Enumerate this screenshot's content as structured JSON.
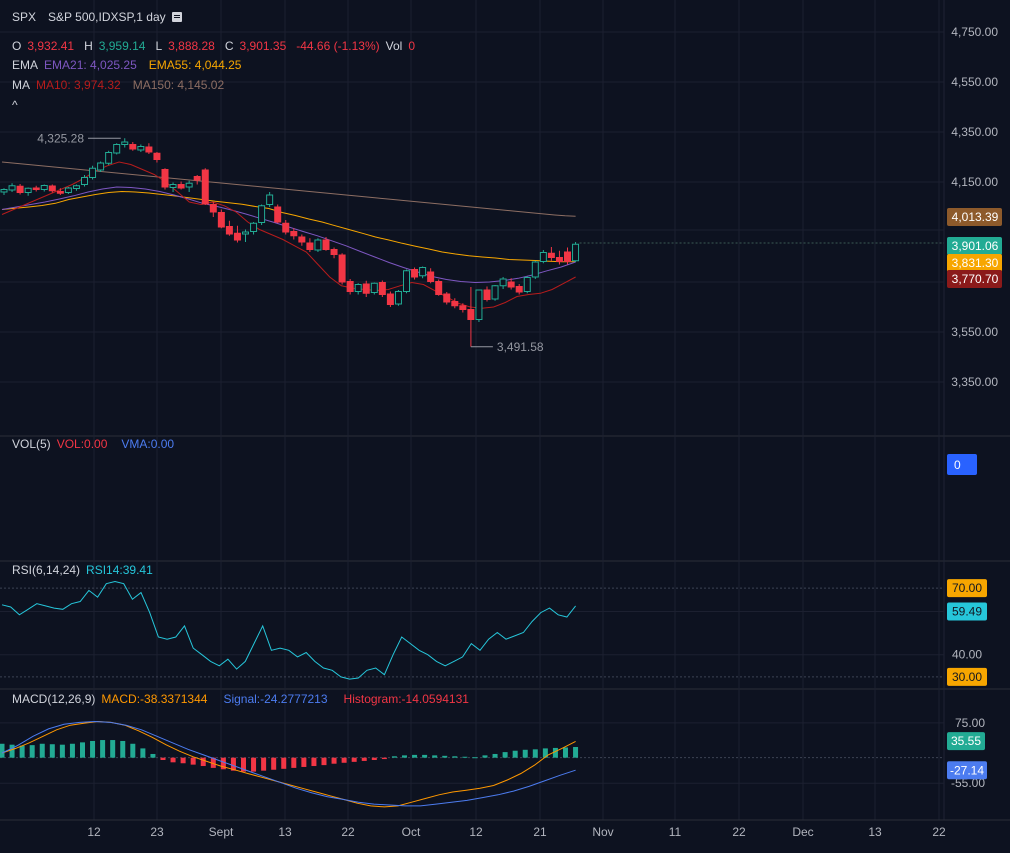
{
  "header": {
    "symbol": "SPX",
    "description": "S&P 500,IDXSP,1 day",
    "ohlc": {
      "o_label": "O",
      "o_value": "3,932.41",
      "h_label": "H",
      "h_value": "3,959.14",
      "l_label": "L",
      "l_value": "3,888.28",
      "c_label": "C",
      "c_value": "3,901.35",
      "change": "-44.66 (-1.13%)",
      "vol_label": "Vol",
      "vol_value": "0"
    },
    "ema": {
      "label": "EMA",
      "ema21": "EMA21: 4,025.25",
      "ema55": "EMA55: 4,044.25"
    },
    "ma": {
      "label": "MA",
      "ma10": "MA10: 3,974.32",
      "ma150": "MA150: 4,145.02"
    },
    "collapse": "^"
  },
  "volume_panel": {
    "title": "VOL(5)",
    "vol": "VOL:0.00",
    "vma": "VMA:0.00",
    "badge": "0"
  },
  "rsi_panel": {
    "title": "RSI(6,14,24)",
    "rsi14": "RSI14:39.41"
  },
  "macd_panel": {
    "title": "MACD(12,26,9)",
    "macd": "MACD:-38.3371344",
    "signal": "Signal:-24.2777213",
    "histogram": "Histogram:-14.0594131"
  },
  "colors": {
    "background": "#0d1220",
    "grid": "#1c2030",
    "up": "#22ab94",
    "down": "#f23645",
    "ema21": "#7e57c2",
    "ema55": "#f7a600",
    "ma10": "#b71c1c",
    "ma150": "#8d6e63",
    "rsi": "#26c6da",
    "macd": "#ff9800",
    "signal": "#4c7cf0"
  },
  "chart_data": [
    {
      "type": "candlestick",
      "title": "SPX",
      "y_ticks": [
        "4,750.00",
        "4,550.00",
        "4,350.00",
        "4,150.00",
        "3,550.00",
        "3,350.00"
      ],
      "x_ticks": [
        "12",
        "23",
        "Sept",
        "13",
        "22",
        "Oct",
        "12",
        "21",
        "Nov",
        "11",
        "22",
        "Dec",
        "13",
        "22"
      ],
      "annotations": {
        "high": "4,325.28",
        "low": "3,491.58"
      },
      "price_badges": [
        {
          "value": "4,013.39",
          "color": "#8d5a2b"
        },
        {
          "value": "3,901.06",
          "color": "#22ab94"
        },
        {
          "value": "3,831.30",
          "color": "#f7a600"
        },
        {
          "value": "3,770.70",
          "color": "#8b1a1a"
        }
      ],
      "candles": [
        [
          4110,
          4125,
          4098,
          4120
        ],
        [
          4118,
          4145,
          4110,
          4135
        ],
        [
          4133,
          4142,
          4100,
          4108
        ],
        [
          4108,
          4128,
          4095,
          4125
        ],
        [
          4126,
          4135,
          4112,
          4120
        ],
        [
          4120,
          4140,
          4112,
          4136
        ],
        [
          4134,
          4140,
          4108,
          4115
        ],
        [
          4112,
          4125,
          4098,
          4105
        ],
        [
          4108,
          4130,
          4102,
          4126
        ],
        [
          4124,
          4140,
          4115,
          4135
        ],
        [
          4140,
          4178,
          4132,
          4168
        ],
        [
          4168,
          4215,
          4160,
          4205
        ],
        [
          4198,
          4232,
          4190,
          4226
        ],
        [
          4225,
          4275,
          4218,
          4268
        ],
        [
          4266,
          4305,
          4260,
          4300
        ],
        [
          4300,
          4325,
          4288,
          4310
        ],
        [
          4300,
          4310,
          4275,
          4282
        ],
        [
          4278,
          4300,
          4270,
          4292
        ],
        [
          4290,
          4305,
          4262,
          4270
        ],
        [
          4265,
          4270,
          4228,
          4240
        ],
        [
          4200,
          4205,
          4120,
          4130
        ],
        [
          4128,
          4148,
          4110,
          4140
        ],
        [
          4140,
          4152,
          4120,
          4126
        ],
        [
          4130,
          4155,
          4110,
          4145
        ],
        [
          4172,
          4178,
          4140,
          4158
        ],
        [
          4198,
          4205,
          4058,
          4062
        ],
        [
          4060,
          4070,
          4010,
          4030
        ],
        [
          4028,
          4040,
          3965,
          3970
        ],
        [
          3972,
          3995,
          3935,
          3942
        ],
        [
          3945,
          3975,
          3908,
          3918
        ],
        [
          3942,
          3960,
          3910,
          3950
        ],
        [
          3952,
          3990,
          3940,
          3985
        ],
        [
          3988,
          4060,
          3978,
          4055
        ],
        [
          4060,
          4110,
          4050,
          4098
        ],
        [
          4050,
          4060,
          3985,
          3990
        ],
        [
          3985,
          3998,
          3940,
          3950
        ],
        [
          3952,
          3965,
          3920,
          3935
        ],
        [
          3930,
          3940,
          3895,
          3910
        ],
        [
          3906,
          3925,
          3870,
          3880
        ],
        [
          3878,
          3925,
          3870,
          3918
        ],
        [
          3918,
          3930,
          3875,
          3880
        ],
        [
          3880,
          3888,
          3845,
          3860
        ],
        [
          3858,
          3865,
          3740,
          3750
        ],
        [
          3752,
          3762,
          3700,
          3712
        ],
        [
          3712,
          3745,
          3700,
          3740
        ],
        [
          3742,
          3755,
          3690,
          3705
        ],
        [
          3708,
          3748,
          3700,
          3745
        ],
        [
          3748,
          3756,
          3690,
          3700
        ],
        [
          3702,
          3712,
          3650,
          3660
        ],
        [
          3662,
          3718,
          3655,
          3712
        ],
        [
          3712,
          3800,
          3705,
          3795
        ],
        [
          3800,
          3808,
          3760,
          3770
        ],
        [
          3775,
          3812,
          3765,
          3808
        ],
        [
          3790,
          3805,
          3745,
          3752
        ],
        [
          3752,
          3760,
          3695,
          3700
        ],
        [
          3702,
          3710,
          3660,
          3670
        ],
        [
          3672,
          3685,
          3645,
          3655
        ],
        [
          3655,
          3665,
          3628,
          3640
        ],
        [
          3640,
          3730,
          3491,
          3600
        ],
        [
          3600,
          3720,
          3590,
          3718
        ],
        [
          3718,
          3732,
          3672,
          3680
        ],
        [
          3682,
          3738,
          3675,
          3735
        ],
        [
          3735,
          3770,
          3722,
          3762
        ],
        [
          3750,
          3765,
          3720,
          3730
        ],
        [
          3732,
          3742,
          3700,
          3710
        ],
        [
          3712,
          3772,
          3705,
          3768
        ],
        [
          3770,
          3835,
          3762,
          3830
        ],
        [
          3832,
          3878,
          3825,
          3868
        ],
        [
          3865,
          3890,
          3835,
          3848
        ],
        [
          3848,
          3875,
          3820,
          3832
        ],
        [
          3870,
          3888,
          3820,
          3832
        ],
        [
          3835,
          3910,
          3830,
          3901
        ]
      ],
      "ema21_series": [
        4040,
        4050,
        4060,
        4070,
        4082,
        4095,
        4110,
        4122,
        4130,
        4128,
        4122,
        4112,
        4098,
        4082,
        4065,
        4052,
        4038,
        4022,
        4005,
        3988,
        3970,
        3952,
        3935,
        3915,
        3895,
        3872,
        3850,
        3828,
        3808,
        3790,
        3772,
        3760,
        3752,
        3748,
        3750,
        3756,
        3765,
        3778,
        3795,
        3810,
        3830
      ],
      "ema55_series": [
        4040,
        4045,
        4050,
        4056,
        4065,
        4080,
        4090,
        4100,
        4108,
        4112,
        4110,
        4106,
        4100,
        4094,
        4087,
        4080,
        4073,
        4067,
        4061,
        4052,
        4044,
        4028,
        4016,
        4002,
        3990,
        3975,
        3960,
        3945,
        3930,
        3918,
        3905,
        3893,
        3882,
        3870,
        3862,
        3855,
        3850,
        3846,
        3840,
        3838,
        3836,
        3833,
        3831,
        3831
      ],
      "ma10_series": [
        4020,
        4040,
        4060,
        4080,
        4100,
        4120,
        4140,
        4165,
        4195,
        4215,
        4230,
        4220,
        4200,
        4180,
        4150,
        4110,
        4070,
        4060,
        4070,
        4055,
        4030,
        3990,
        3960,
        3940,
        3920,
        3895,
        3870,
        3820,
        3770,
        3735,
        3725,
        3720,
        3716,
        3720,
        3735,
        3748,
        3740,
        3715,
        3690,
        3665,
        3650,
        3645,
        3650,
        3668,
        3692,
        3700,
        3705,
        3720,
        3745,
        3770
      ],
      "ma150_series": [
        4230,
        4226,
        4222,
        4218,
        4214,
        4210,
        4206,
        4202,
        4198,
        4194,
        4190,
        4186,
        4182,
        4178,
        4174,
        4170,
        4166,
        4162,
        4158,
        4154,
        4150,
        4146,
        4142,
        4138,
        4134,
        4130,
        4126,
        4122,
        4118,
        4114,
        4110,
        4106,
        4102,
        4098,
        4094,
        4090,
        4086,
        4082,
        4078,
        4074,
        4070,
        4066,
        4062,
        4058,
        4054,
        4050,
        4046,
        4042,
        4038,
        4034,
        4030,
        4026,
        4022,
        4018,
        4015,
        4013
      ]
    },
    {
      "type": "line",
      "title": "RSI(6,14,24)",
      "y_ticks": [
        "70.00",
        "59.49",
        "40.00",
        "30.00"
      ],
      "values": [
        62.5,
        61.5,
        58,
        60.5,
        63,
        62,
        61,
        60.5,
        63,
        64,
        69,
        66,
        72,
        73,
        72,
        65,
        68,
        59,
        48,
        47,
        48,
        53,
        43,
        40,
        37,
        35,
        38,
        33.5,
        37,
        45,
        53,
        42,
        43,
        42,
        39,
        41,
        37,
        34,
        33,
        30,
        29,
        29.5,
        33,
        34,
        31,
        40,
        48,
        45,
        42,
        40,
        37,
        35,
        37,
        39,
        45,
        42,
        47,
        50,
        47,
        48.5,
        50,
        55,
        59,
        61,
        58,
        57,
        62
      ],
      "ylim": [
        25,
        80
      ]
    },
    {
      "type": "line+bar",
      "title": "MACD(12,26,9)",
      "y_ticks": [
        "75.00",
        "35.55",
        "-27.14",
        "-55.00"
      ],
      "histogram": [
        30,
        28,
        26,
        27,
        30,
        29,
        28,
        30,
        33,
        36,
        38,
        38,
        36,
        30,
        20,
        8,
        -5,
        -10,
        -12,
        -15,
        -18,
        -22,
        -25,
        -28,
        -30,
        -30,
        -28,
        -26,
        -24,
        -22,
        -20,
        -18,
        -16,
        -13,
        -11,
        -9,
        -7,
        -5,
        -3,
        3,
        5,
        6,
        6,
        5,
        4,
        3,
        2,
        1,
        5,
        8,
        12,
        15,
        17,
        18,
        20,
        21,
        22,
        23
      ],
      "macd_series": [
        10,
        20,
        32,
        46,
        60,
        70,
        74,
        78,
        76,
        70,
        58,
        44,
        28,
        14,
        2,
        -8,
        -18,
        -26,
        -34,
        -42,
        -50,
        -58,
        -66,
        -74,
        -82,
        -90,
        -98,
        -104,
        -106,
        -104,
        -96,
        -88,
        -80,
        -74,
        -70,
        -66,
        -60,
        -48,
        -34,
        -16,
        6,
        20,
        35
      ],
      "signal_series": [
        10,
        26,
        46,
        62,
        72,
        76,
        78,
        76,
        70,
        60,
        46,
        32,
        18,
        6,
        -6,
        -18,
        -30,
        -42,
        -54,
        -66,
        -76,
        -84,
        -90,
        -96,
        -100,
        -102,
        -104,
        -104,
        -100,
        -96,
        -92,
        -86,
        -80,
        -72,
        -62,
        -50,
        -38,
        -27
      ]
    }
  ]
}
